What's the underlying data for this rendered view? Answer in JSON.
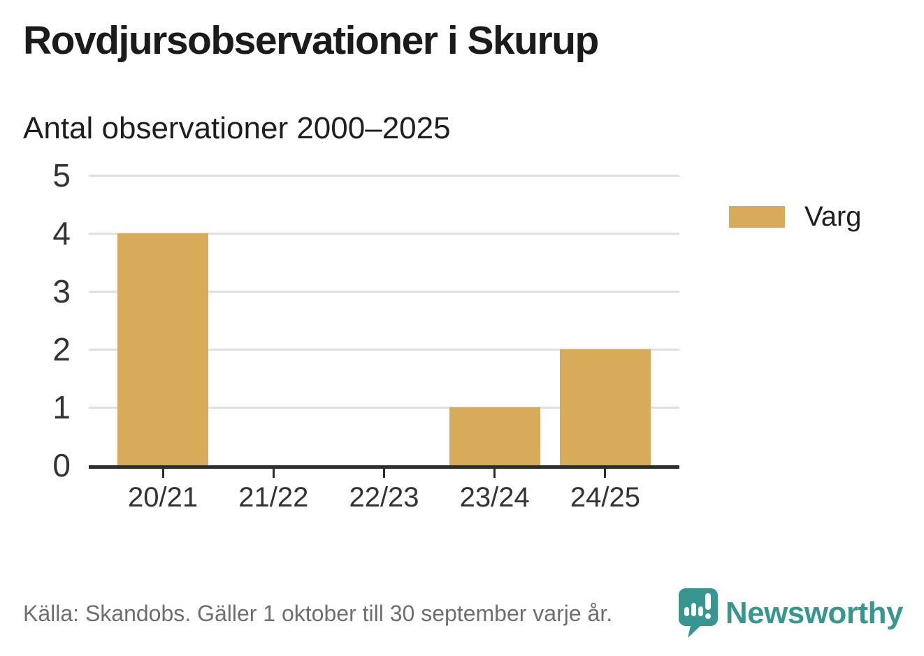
{
  "header": {
    "title": "Rovdjursobservationer i Skurup",
    "subtitle": "Antal observationer 2000–2025"
  },
  "chart_data": {
    "type": "bar",
    "title": "Rovdjursobservationer i Skurup",
    "subtitle": "Antal observationer 2000–2025",
    "categories": [
      "20/21",
      "21/22",
      "22/23",
      "23/24",
      "24/25"
    ],
    "series": [
      {
        "name": "Varg",
        "values": [
          4,
          0,
          0,
          1,
          2
        ],
        "color": "#D8AB5A"
      }
    ],
    "xlabel": "",
    "ylabel": "",
    "ylim": [
      0,
      5
    ],
    "yticks": [
      0,
      1,
      2,
      3,
      4,
      5
    ],
    "grid": true,
    "legend_position": "right"
  },
  "legend": {
    "items": [
      {
        "label": "Varg",
        "color": "#D8AB5A"
      }
    ]
  },
  "footer": {
    "source": "Källa: Skandobs. Gäller 1 oktober till 30 september varje år.",
    "brand": "Newsworthy",
    "brand_icon": "newsworthy-speech-bubble-chart-icon"
  },
  "colors": {
    "bar": "#D8AB5A",
    "axis": "#2D2D2D",
    "gridline": "#E0E0E0",
    "title_text": "#1B1B1B",
    "tick_text": "#333333",
    "muted_text": "#6E6E6E",
    "brand_teal": "#37968F"
  }
}
